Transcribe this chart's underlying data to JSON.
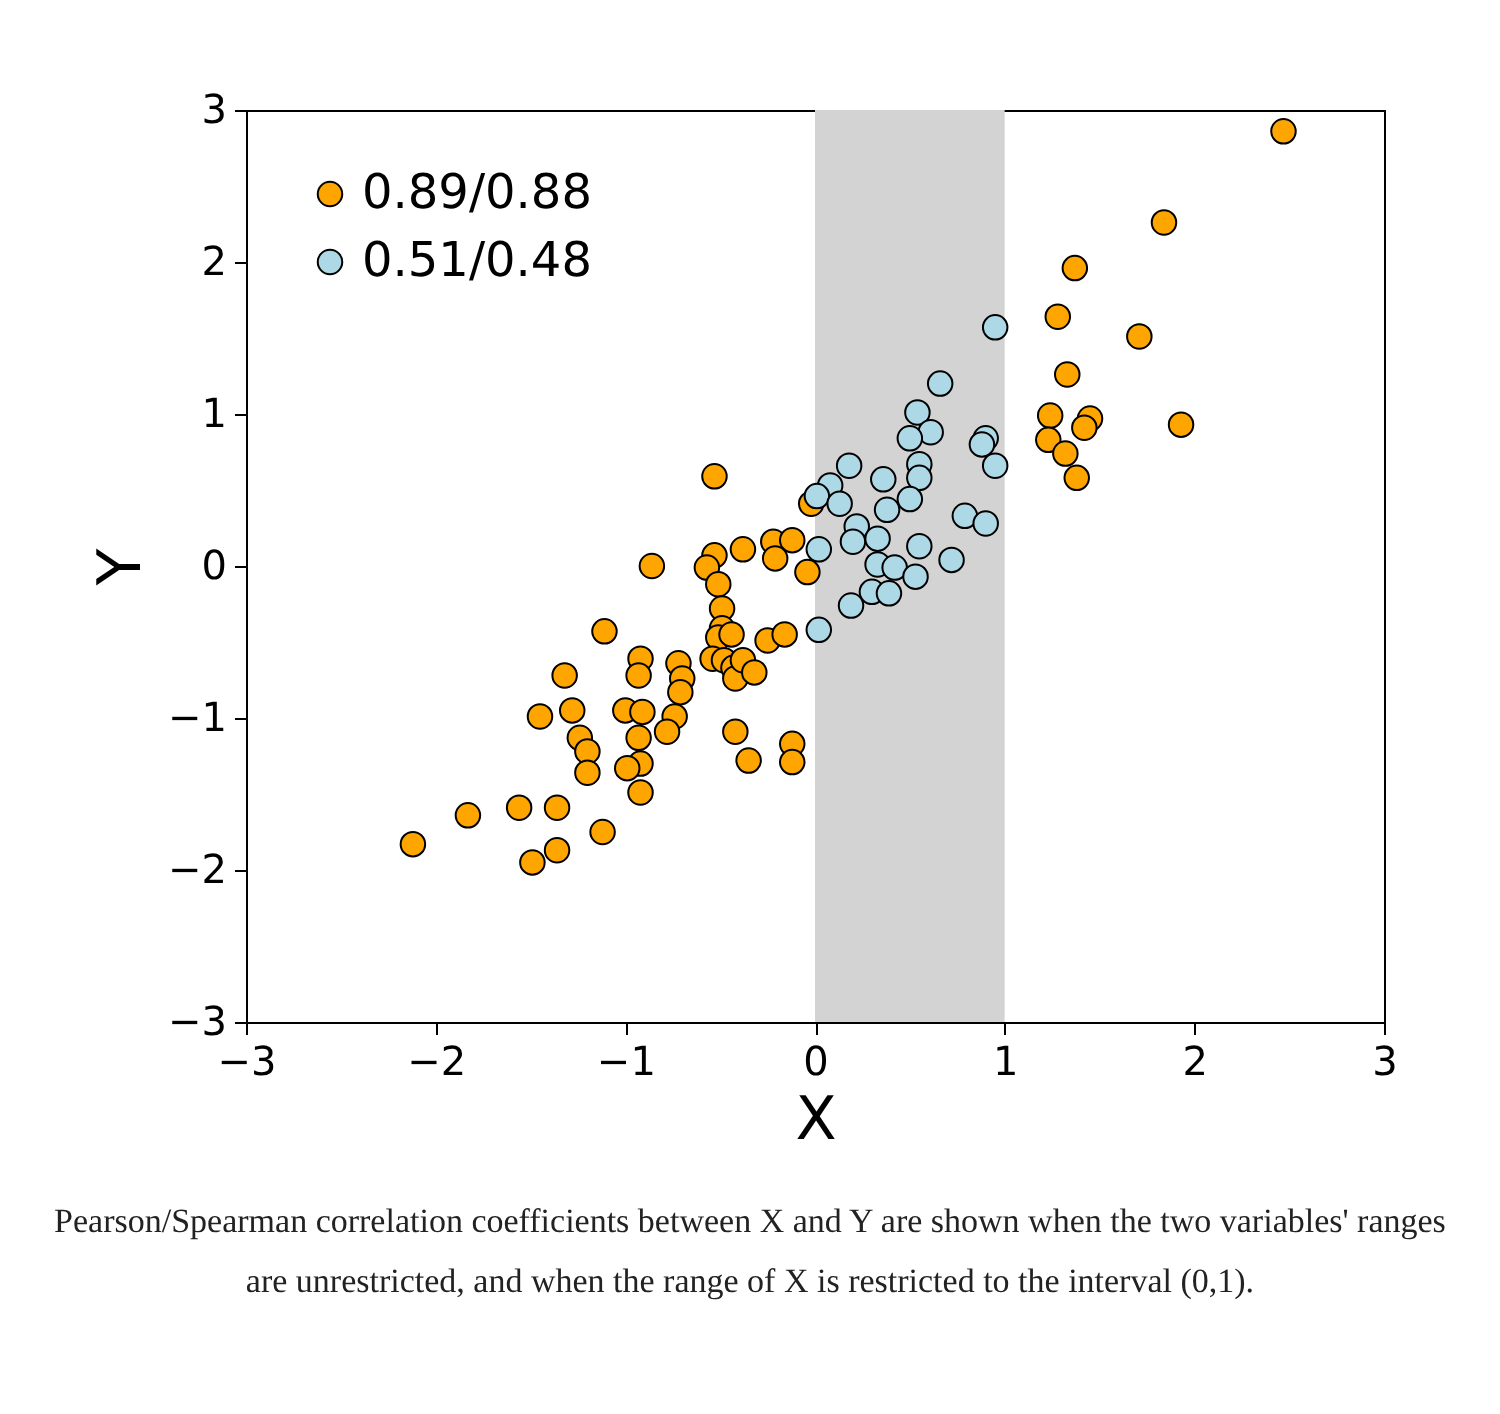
{
  "chart_data": {
    "type": "scatter",
    "xlabel": "X",
    "ylabel": "Y",
    "xlim": [
      -3,
      3
    ],
    "ylim": [
      -3,
      3
    ],
    "xticks": [
      -3,
      -2,
      -1,
      0,
      1,
      2,
      3
    ],
    "yticks": [
      -3,
      -2,
      -1,
      0,
      1,
      2,
      3
    ],
    "grid": false,
    "legend": "top left",
    "marker": "circle",
    "bands": [
      {
        "axis": "x",
        "from": 0,
        "to": 1,
        "color": "#d3d3d3"
      }
    ],
    "series": [
      {
        "name": "0.89/0.88",
        "color": "#ffa500",
        "x": [
          -2.12,
          -1.83,
          -1.56,
          -1.49,
          -1.36,
          -1.12,
          -1.36,
          -1.45,
          -1.32,
          -1.28,
          -1.24,
          -1.2,
          -1.2,
          -1.11,
          -1.0,
          -0.92,
          -0.93,
          -0.91,
          -0.93,
          -0.92,
          -0.92,
          -0.99,
          -0.86,
          -0.72,
          -0.7,
          -0.71,
          -0.74,
          -0.78,
          -0.53,
          -0.53,
          -0.57,
          -0.51,
          -0.49,
          -0.49,
          -0.51,
          -0.44,
          -0.54,
          -0.48,
          -0.43,
          -0.42,
          -0.38,
          -0.32,
          -0.38,
          -0.25,
          -0.22,
          -0.21,
          -0.12,
          -0.16,
          -0.42,
          -0.35,
          -0.12,
          -0.12,
          -0.04,
          -0.02,
          2.47,
          1.84,
          1.37,
          1.28,
          1.71,
          1.33,
          1.24,
          1.45,
          1.42,
          1.23,
          1.32,
          1.38,
          1.93
        ],
        "values": [
          -1.83,
          -1.64,
          -1.59,
          -1.95,
          -1.87,
          -1.75,
          -1.59,
          -0.99,
          -0.72,
          -0.95,
          -1.13,
          -1.22,
          -1.36,
          -0.43,
          -0.95,
          -0.61,
          -0.72,
          -0.96,
          -1.13,
          -1.3,
          -1.49,
          -1.33,
          0.0,
          -0.64,
          -0.74,
          -0.83,
          -0.99,
          -1.09,
          0.59,
          0.07,
          -0.01,
          -0.12,
          -0.28,
          -0.41,
          -0.47,
          -0.45,
          -0.61,
          -0.62,
          -0.67,
          -0.74,
          -0.62,
          -0.7,
          0.11,
          -0.49,
          0.16,
          0.05,
          0.17,
          -0.45,
          -1.09,
          -1.28,
          -1.17,
          -1.29,
          -0.04,
          0.41,
          2.86,
          2.26,
          1.96,
          1.64,
          1.51,
          1.26,
          0.99,
          0.97,
          0.91,
          0.83,
          0.74,
          0.58,
          0.93
        ]
      },
      {
        "name": "0.51/0.48",
        "color": "#add8e6",
        "x": [
          0.95,
          0.66,
          0.54,
          0.61,
          0.5,
          0.9,
          0.88,
          0.95,
          0.55,
          0.55,
          0.18,
          0.36,
          0.08,
          0.01,
          0.13,
          0.5,
          0.38,
          0.79,
          0.9,
          0.22,
          0.2,
          0.33,
          0.55,
          0.72,
          0.02,
          0.33,
          0.42,
          0.53,
          0.3,
          0.39,
          0.19,
          0.02
        ],
        "values": [
          1.57,
          1.2,
          1.01,
          0.88,
          0.84,
          0.84,
          0.8,
          0.66,
          0.67,
          0.58,
          0.66,
          0.57,
          0.53,
          0.46,
          0.41,
          0.44,
          0.37,
          0.33,
          0.28,
          0.26,
          0.16,
          0.18,
          0.13,
          0.04,
          0.11,
          0.01,
          -0.01,
          -0.07,
          -0.17,
          -0.18,
          -0.26,
          -0.42
        ]
      }
    ],
    "annotations": [
      "Pearson/Spearman correlation coefficients between X and Y are shown when the two variables' ranges are unrestricted, and when the range of X is restricted to the interval (0,1)."
    ]
  }
}
